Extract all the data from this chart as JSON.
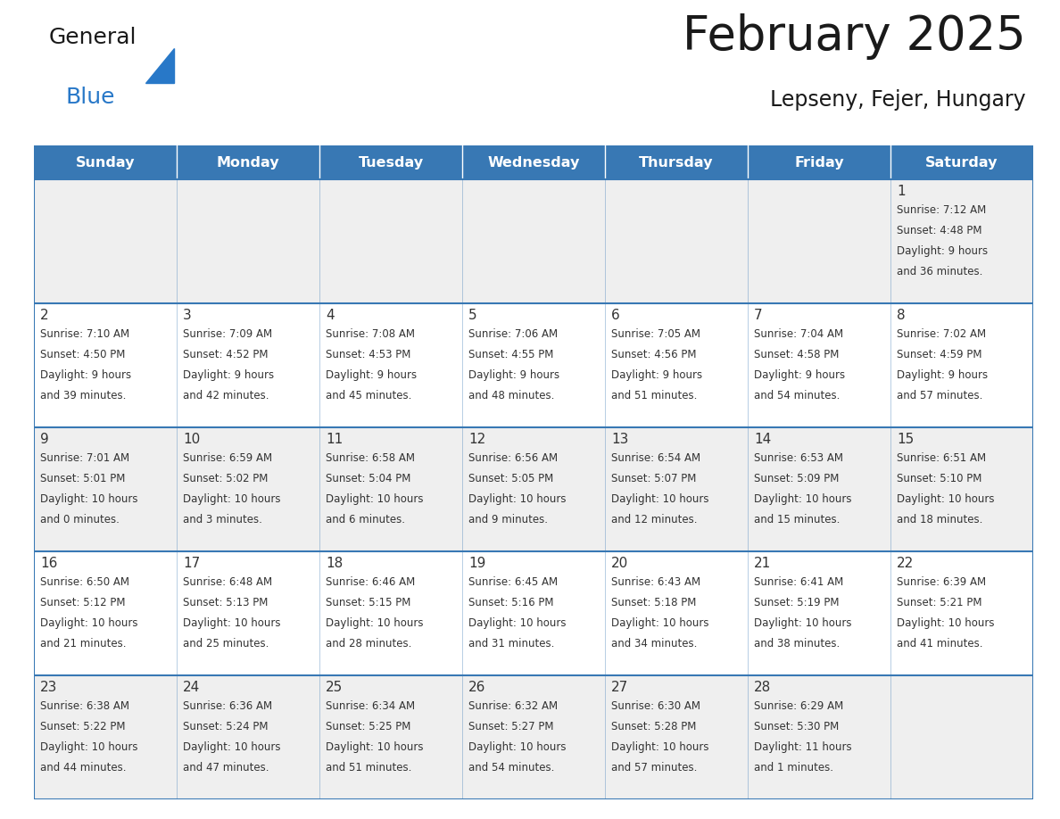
{
  "title": "February 2025",
  "subtitle": "Lepseny, Fejer, Hungary",
  "days_of_week": [
    "Sunday",
    "Monday",
    "Tuesday",
    "Wednesday",
    "Thursday",
    "Friday",
    "Saturday"
  ],
  "header_bg": "#3878b4",
  "cell_bg_odd": "#efefef",
  "cell_bg_even": "#ffffff",
  "border_color": "#3878b4",
  "text_color": "#333333",
  "title_color": "#1a1a1a",
  "logo_black": "#1a1a1a",
  "logo_blue": "#2878c8",
  "calendar_data": [
    [
      null,
      null,
      null,
      null,
      null,
      null,
      {
        "day": 1,
        "sunrise": "7:12 AM",
        "sunset": "4:48 PM",
        "daylight_hours": 9,
        "daylight_minutes": 36
      }
    ],
    [
      {
        "day": 2,
        "sunrise": "7:10 AM",
        "sunset": "4:50 PM",
        "daylight_hours": 9,
        "daylight_minutes": 39
      },
      {
        "day": 3,
        "sunrise": "7:09 AM",
        "sunset": "4:52 PM",
        "daylight_hours": 9,
        "daylight_minutes": 42
      },
      {
        "day": 4,
        "sunrise": "7:08 AM",
        "sunset": "4:53 PM",
        "daylight_hours": 9,
        "daylight_minutes": 45
      },
      {
        "day": 5,
        "sunrise": "7:06 AM",
        "sunset": "4:55 PM",
        "daylight_hours": 9,
        "daylight_minutes": 48
      },
      {
        "day": 6,
        "sunrise": "7:05 AM",
        "sunset": "4:56 PM",
        "daylight_hours": 9,
        "daylight_minutes": 51
      },
      {
        "day": 7,
        "sunrise": "7:04 AM",
        "sunset": "4:58 PM",
        "daylight_hours": 9,
        "daylight_minutes": 54
      },
      {
        "day": 8,
        "sunrise": "7:02 AM",
        "sunset": "4:59 PM",
        "daylight_hours": 9,
        "daylight_minutes": 57
      }
    ],
    [
      {
        "day": 9,
        "sunrise": "7:01 AM",
        "sunset": "5:01 PM",
        "daylight_hours": 10,
        "daylight_minutes": 0
      },
      {
        "day": 10,
        "sunrise": "6:59 AM",
        "sunset": "5:02 PM",
        "daylight_hours": 10,
        "daylight_minutes": 3
      },
      {
        "day": 11,
        "sunrise": "6:58 AM",
        "sunset": "5:04 PM",
        "daylight_hours": 10,
        "daylight_minutes": 6
      },
      {
        "day": 12,
        "sunrise": "6:56 AM",
        "sunset": "5:05 PM",
        "daylight_hours": 10,
        "daylight_minutes": 9
      },
      {
        "day": 13,
        "sunrise": "6:54 AM",
        "sunset": "5:07 PM",
        "daylight_hours": 10,
        "daylight_minutes": 12
      },
      {
        "day": 14,
        "sunrise": "6:53 AM",
        "sunset": "5:09 PM",
        "daylight_hours": 10,
        "daylight_minutes": 15
      },
      {
        "day": 15,
        "sunrise": "6:51 AM",
        "sunset": "5:10 PM",
        "daylight_hours": 10,
        "daylight_minutes": 18
      }
    ],
    [
      {
        "day": 16,
        "sunrise": "6:50 AM",
        "sunset": "5:12 PM",
        "daylight_hours": 10,
        "daylight_minutes": 21
      },
      {
        "day": 17,
        "sunrise": "6:48 AM",
        "sunset": "5:13 PM",
        "daylight_hours": 10,
        "daylight_minutes": 25
      },
      {
        "day": 18,
        "sunrise": "6:46 AM",
        "sunset": "5:15 PM",
        "daylight_hours": 10,
        "daylight_minutes": 28
      },
      {
        "day": 19,
        "sunrise": "6:45 AM",
        "sunset": "5:16 PM",
        "daylight_hours": 10,
        "daylight_minutes": 31
      },
      {
        "day": 20,
        "sunrise": "6:43 AM",
        "sunset": "5:18 PM",
        "daylight_hours": 10,
        "daylight_minutes": 34
      },
      {
        "day": 21,
        "sunrise": "6:41 AM",
        "sunset": "5:19 PM",
        "daylight_hours": 10,
        "daylight_minutes": 38
      },
      {
        "day": 22,
        "sunrise": "6:39 AM",
        "sunset": "5:21 PM",
        "daylight_hours": 10,
        "daylight_minutes": 41
      }
    ],
    [
      {
        "day": 23,
        "sunrise": "6:38 AM",
        "sunset": "5:22 PM",
        "daylight_hours": 10,
        "daylight_minutes": 44
      },
      {
        "day": 24,
        "sunrise": "6:36 AM",
        "sunset": "5:24 PM",
        "daylight_hours": 10,
        "daylight_minutes": 47
      },
      {
        "day": 25,
        "sunrise": "6:34 AM",
        "sunset": "5:25 PM",
        "daylight_hours": 10,
        "daylight_minutes": 51
      },
      {
        "day": 26,
        "sunrise": "6:32 AM",
        "sunset": "5:27 PM",
        "daylight_hours": 10,
        "daylight_minutes": 54
      },
      {
        "day": 27,
        "sunrise": "6:30 AM",
        "sunset": "5:28 PM",
        "daylight_hours": 10,
        "daylight_minutes": 57
      },
      {
        "day": 28,
        "sunrise": "6:29 AM",
        "sunset": "5:30 PM",
        "daylight_hours": 11,
        "daylight_minutes": 1
      },
      null
    ]
  ]
}
